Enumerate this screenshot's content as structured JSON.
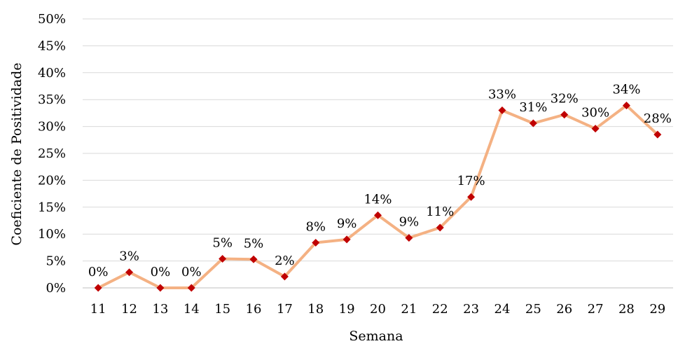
{
  "chart_data": {
    "type": "line",
    "title": "",
    "xlabel": "Semana",
    "ylabel": "Coeficiente de Positividade",
    "x": [
      "11",
      "12",
      "13",
      "14",
      "15",
      "16",
      "17",
      "18",
      "19",
      "20",
      "21",
      "22",
      "23",
      "24",
      "25",
      "26",
      "27",
      "28",
      "29"
    ],
    "values": [
      0,
      2.9,
      0,
      0,
      5.4,
      5.3,
      2.1,
      8.4,
      9.0,
      13.5,
      9.3,
      11.2,
      16.9,
      33.0,
      30.6,
      32.2,
      29.6,
      33.9,
      28.5
    ],
    "data_labels": [
      "0%",
      "3%",
      "0%",
      "0%",
      "5%",
      "5%",
      "2%",
      "8%",
      "9%",
      "14%",
      "9%",
      "11%",
      "17%",
      "33%",
      "31%",
      "32%",
      "30%",
      "34%",
      "28%"
    ],
    "yticks": [
      "0%",
      "5%",
      "10%",
      "15%",
      "20%",
      "25%",
      "30%",
      "35%",
      "40%",
      "45%",
      "50%"
    ],
    "ylim": [
      0,
      50
    ],
    "grid": true,
    "legend": "none",
    "line_color": "#F4B183",
    "marker_color": "#C00000",
    "marker": "diamond"
  }
}
